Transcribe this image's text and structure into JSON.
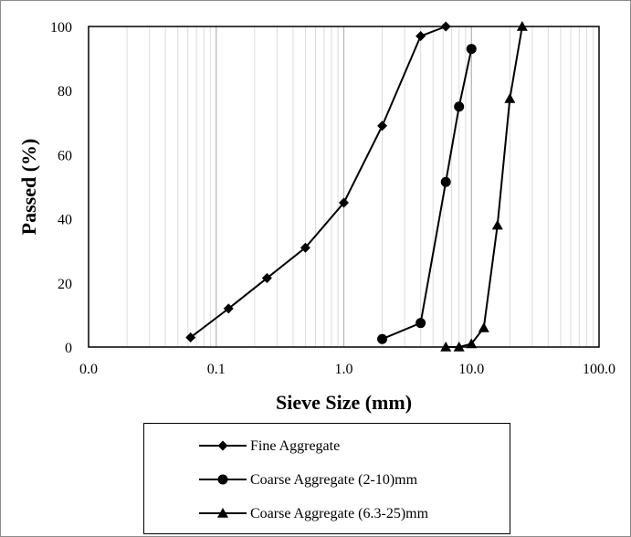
{
  "chart_data": {
    "type": "line",
    "title": "",
    "xlabel": "Sieve Size (mm)",
    "ylabel": "Passed (%)",
    "x_scale": "log",
    "xlim": [
      0.01,
      100
    ],
    "ylim": [
      0,
      100
    ],
    "x_ticks": [
      "0.0",
      "0.1",
      "1.0",
      "10.0",
      "100.0"
    ],
    "y_ticks": [
      "0",
      "20",
      "40",
      "60",
      "80",
      "100"
    ],
    "grid": "vertical minor and major gridlines",
    "legend_placement": "bottom",
    "series": [
      {
        "name": "Fine Aggregate",
        "marker": "diamond",
        "x": [
          0.063,
          0.125,
          0.25,
          0.5,
          1.0,
          2.0,
          4.0,
          6.3
        ],
        "y": [
          3,
          12,
          21.5,
          31,
          45,
          69,
          97,
          100
        ]
      },
      {
        "name": "Coarse Aggregate (2-10)mm",
        "marker": "circle",
        "x": [
          2.0,
          4.0,
          6.3,
          8.0,
          10.0
        ],
        "y": [
          2.5,
          7.5,
          51.5,
          75,
          93
        ]
      },
      {
        "name": "Coarse Aggregate (6.3-25)mm",
        "marker": "triangle",
        "x": [
          6.3,
          8.0,
          10.0,
          12.5,
          16.0,
          20.0,
          25.0
        ],
        "y": [
          0,
          0,
          1,
          6,
          38,
          77.5,
          100
        ]
      }
    ]
  }
}
